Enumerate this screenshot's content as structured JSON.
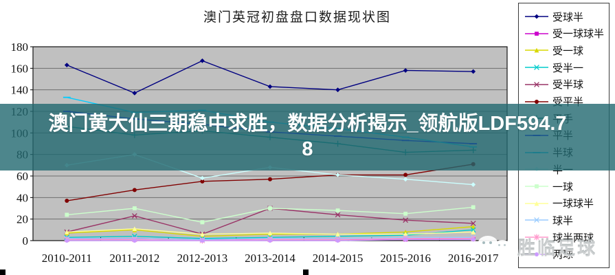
{
  "chart_title": "澳门英冠初盘盘口数据现状图",
  "banner": {
    "text": "澳门黄大仙三期稳中求胜，数据分析揭示_领航版LDF594.78",
    "line1": "澳门黄大仙三期稳中求胜，数据分析揭示_领航版LDF594.7",
    "line2": "8",
    "bg_color": "#20686F",
    "text_color": "#FFFFFF"
  },
  "watermark": {
    "label": "胜临足球",
    "icon": "chat-smiley-icon"
  },
  "chart_data": {
    "type": "line",
    "title": "澳门英冠初盘盘口数据现状图",
    "categories": [
      "2010-2011",
      "2011-2012",
      "2012-2013",
      "2013-2014",
      "2014-2015",
      "2015-2016",
      "2016-2017"
    ],
    "xlabel": "",
    "ylabel": "",
    "ylim": [
      0,
      180
    ],
    "ytick_step": 20,
    "yticks": [
      0,
      20,
      40,
      60,
      80,
      100,
      120,
      140,
      160,
      180
    ],
    "grid": true,
    "plot_bg": "#C0C0C0",
    "legend_position": "right",
    "series": [
      {
        "name": "受球半",
        "color": "#000080",
        "marker": "diamond",
        "values": [
          163,
          137,
          167,
          143,
          140,
          158,
          157
        ]
      },
      {
        "name": "受一球球半",
        "color": "#CC00CC",
        "marker": "square",
        "values": [
          1,
          2,
          1,
          1,
          1,
          1,
          2
        ]
      },
      {
        "name": "受一球",
        "color": "#D8D800",
        "marker": "triangle",
        "values": [
          7,
          10,
          4,
          6,
          6,
          8,
          13
        ]
      },
      {
        "name": "受半一",
        "color": "#00CCCC",
        "marker": "x",
        "values": [
          3,
          4,
          2,
          3,
          4,
          5,
          10
        ]
      },
      {
        "name": "受半球",
        "color": "#993366",
        "marker": "x",
        "values": [
          8,
          23,
          6,
          30,
          24,
          19,
          16
        ]
      },
      {
        "name": "受平半",
        "color": "#800000",
        "marker": "circle",
        "values": [
          37,
          47,
          55,
          57,
          61,
          61,
          71
        ]
      },
      {
        "name": "平手",
        "color": "#008080",
        "marker": "plus",
        "values": [
          106,
          98,
          102,
          96,
          90,
          82,
          84
        ]
      },
      {
        "name": "平半",
        "color": "#0000FF",
        "marker": "dash",
        "values": [
          120,
          113,
          108,
          101,
          97,
          93,
          90
        ]
      },
      {
        "name": "半球",
        "color": "#00CCFF",
        "marker": "dash",
        "values": [
          133,
          119,
          121,
          110,
          104,
          96,
          87
        ]
      },
      {
        "name": "半一",
        "color": "#CCFFFF",
        "marker": "diamond",
        "values": [
          70,
          80,
          58,
          68,
          61,
          57,
          52
        ]
      },
      {
        "name": "一球",
        "color": "#CCFFCC",
        "marker": "square",
        "values": [
          24,
          30,
          17,
          30,
          28,
          25,
          31
        ]
      },
      {
        "name": "一球球半",
        "color": "#FFFF99",
        "marker": "triangle",
        "values": [
          8,
          11,
          6,
          7,
          6,
          6,
          8
        ]
      },
      {
        "name": "球半",
        "color": "#99CCFF",
        "marker": "x",
        "values": [
          2,
          2,
          1,
          2,
          2,
          3,
          3
        ]
      },
      {
        "name": "球半两球",
        "color": "#FF99CC",
        "marker": "star",
        "values": [
          1,
          1,
          0,
          1,
          1,
          2,
          2
        ]
      },
      {
        "name": "两球",
        "color": "#CC99FF",
        "marker": "circle",
        "values": [
          0,
          0,
          0,
          0,
          0,
          1,
          1
        ]
      }
    ]
  }
}
